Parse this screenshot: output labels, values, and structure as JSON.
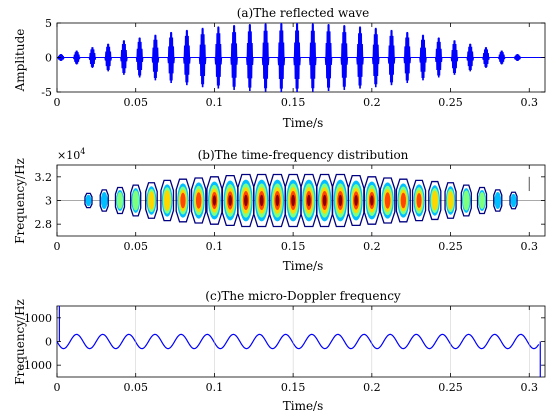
{
  "chart_data": [
    {
      "type": "line",
      "title": "(a)The reflected wave",
      "xlabel": "Time/s",
      "ylabel": "Amplitude",
      "xlim": [
        0,
        0.31
      ],
      "ylim": [
        -5,
        5
      ],
      "xticks": [
        0,
        0.05,
        0.1,
        0.15,
        0.2,
        0.25,
        0.3
      ],
      "xtick_labels": [
        "0",
        "0.05",
        "0.1",
        "0.15",
        "0.2",
        "0.25",
        "0.3"
      ],
      "yticks": [
        -5,
        0,
        5
      ],
      "ytick_labels": [
        "-5",
        "0",
        "5"
      ],
      "series": [
        {
          "color": "#0000ff",
          "pulse_period_s": 0.01,
          "pulse_centers_s": [
            0.0025,
            0.0125,
            0.0225,
            0.0325,
            0.0425,
            0.0525,
            0.0625,
            0.0725,
            0.0825,
            0.0925,
            0.1025,
            0.1125,
            0.1225,
            0.1325,
            0.1425,
            0.1525,
            0.1625,
            0.1725,
            0.1825,
            0.1925,
            0.2025,
            0.2125,
            0.2225,
            0.2325,
            0.2425,
            0.2525,
            0.2625,
            0.2725,
            0.2825,
            0.2925
          ],
          "pulse_amplitudes": [
            0.5,
            1.0,
            1.5,
            2.0,
            2.5,
            2.9,
            3.3,
            3.7,
            4.0,
            4.3,
            4.5,
            4.7,
            4.85,
            4.95,
            5.0,
            5.0,
            4.95,
            4.85,
            4.7,
            4.5,
            4.3,
            4.0,
            3.7,
            3.3,
            2.9,
            2.5,
            2.0,
            1.5,
            1.0,
            0.5
          ]
        }
      ],
      "grid": false
    },
    {
      "type": "heatmap",
      "title": "(b)The time-frequency distribution",
      "xlabel": "Time/s",
      "ylabel": "Frequency/Hz",
      "exponent_label": "×10",
      "exponent_power": "4",
      "xlim": [
        0,
        0.31
      ],
      "ylim": [
        2.7,
        3.3
      ],
      "xticks": [
        0,
        0.05,
        0.1,
        0.15,
        0.2,
        0.25,
        0.3
      ],
      "xtick_labels": [
        "0",
        "0.05",
        "0.1",
        "0.15",
        "0.2",
        "0.25",
        "0.3"
      ],
      "yticks": [
        2.8,
        3.0,
        3.2
      ],
      "ytick_labels": [
        "2.8",
        "3",
        "3.2"
      ],
      "center_frequency": 3.0,
      "blob_centers_s": [
        0.02,
        0.03,
        0.04,
        0.05,
        0.06,
        0.07,
        0.08,
        0.09,
        0.1,
        0.11,
        0.12,
        0.13,
        0.14,
        0.15,
        0.16,
        0.17,
        0.18,
        0.19,
        0.2,
        0.21,
        0.22,
        0.23,
        0.24,
        0.25,
        0.26,
        0.27,
        0.28,
        0.29
      ],
      "blob_half_height": [
        0.06,
        0.09,
        0.11,
        0.13,
        0.15,
        0.17,
        0.18,
        0.19,
        0.2,
        0.21,
        0.22,
        0.22,
        0.22,
        0.22,
        0.22,
        0.22,
        0.22,
        0.21,
        0.2,
        0.19,
        0.18,
        0.17,
        0.16,
        0.15,
        0.13,
        0.11,
        0.09,
        0.07
      ],
      "blob_intensity": [
        0.1,
        0.2,
        0.3,
        0.4,
        0.55,
        0.65,
        0.75,
        0.82,
        0.9,
        0.95,
        1.0,
        1.0,
        1.0,
        1.0,
        1.0,
        1.0,
        1.0,
        0.95,
        0.9,
        0.85,
        0.78,
        0.7,
        0.6,
        0.5,
        0.4,
        0.3,
        0.2,
        0.1
      ],
      "colors": [
        "#000080",
        "#00bfff",
        "#7fff7f",
        "#ffd700",
        "#ff4500",
        "#8b0000"
      ],
      "grid": false
    },
    {
      "type": "line",
      "title": "(c)The micro-Doppler frequency",
      "xlabel": "Time/s",
      "ylabel": "Frequency/Hz",
      "xlim": [
        0,
        0.31
      ],
      "ylim": [
        -1500,
        1500
      ],
      "xticks": [
        0,
        0.05,
        0.1,
        0.15,
        0.2,
        0.25,
        0.3
      ],
      "xtick_labels": [
        "0",
        "0.05",
        "0.1",
        "0.15",
        "0.2",
        "0.25",
        "0.3"
      ],
      "yticks": [
        -1000,
        0,
        1000
      ],
      "ytick_labels": [
        "-1000",
        "0",
        "1000"
      ],
      "series": [
        {
          "color": "#0000ff",
          "amplitude_hz": 300,
          "period_s": 0.0166,
          "start_s": 0.0,
          "end_s": 0.306,
          "offset_hz": 0
        }
      ],
      "grid": false
    }
  ]
}
